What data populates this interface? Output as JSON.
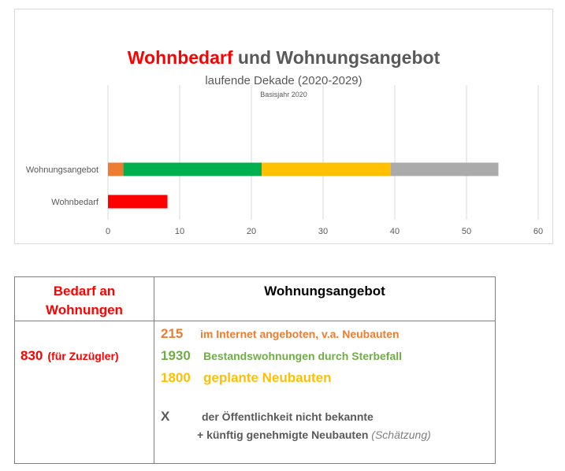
{
  "chart_data": {
    "type": "bar",
    "orientation": "horizontal",
    "stacked": true,
    "title_part1": "Wohnbedarf",
    "title_part2": "und Wohnungsangebot",
    "subtitle": "laufende Dekade (2020-2029)",
    "note": "Basisjahr 2020",
    "categories": [
      "Wohnungsangebot",
      "Wohnbedarf"
    ],
    "series": [
      {
        "color": "#ed7d31",
        "values": [
          2.15,
          0
        ]
      },
      {
        "color": "#00b050",
        "values": [
          19.3,
          0
        ]
      },
      {
        "color": "#ffc000",
        "values": [
          18.0,
          0
        ]
      },
      {
        "color": "#ababab",
        "values": [
          15.0,
          0
        ]
      },
      {
        "color": "#ff0000",
        "values": [
          0,
          8.3
        ]
      }
    ],
    "xlim": [
      0,
      60
    ],
    "xticks": [
      "0",
      "10",
      "20",
      "30",
      "40",
      "50",
      "60"
    ],
    "grid": true,
    "legend": "none"
  },
  "table": {
    "header_left": "Bedarf an Wohnungen",
    "header_right": "Wohnungsangebot",
    "demand_value": "830",
    "demand_suffix": "(für Zuzügler)",
    "offers": [
      {
        "num": "215",
        "text": "im Internet angeboten, v.a. Neubauten",
        "color": "#ed7d31"
      },
      {
        "num": "1930",
        "text": "Bestandswohnungen durch Sterbefall",
        "color": "#70ad47"
      },
      {
        "num": "1800",
        "text": "geplante Neubauten",
        "color": "#ffc000"
      }
    ],
    "unknown_symbol": "X",
    "unknown_text": "der Öffentlichkeit nicht bekannte",
    "unknown_text2": "+ künftig genehmigte Neubauten",
    "unknown_note": "(Schätzung)"
  }
}
